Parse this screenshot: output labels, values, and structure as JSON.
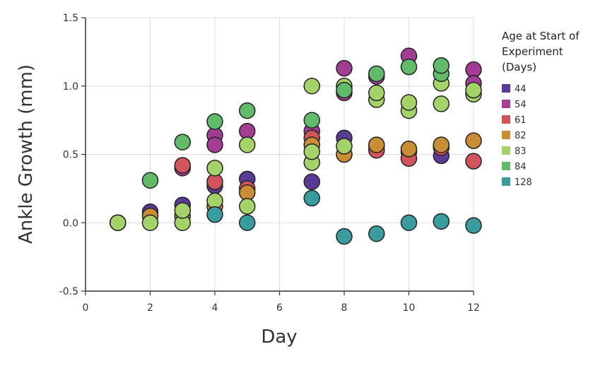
{
  "chart_data": {
    "type": "scatter",
    "title": "",
    "xlabel": "Day",
    "ylabel": "Ankle Growth (mm)",
    "xlim": [
      0,
      12
    ],
    "ylim": [
      -0.5,
      1.5
    ],
    "xticks": [
      "0",
      "2",
      "4",
      "6",
      "8",
      "10",
      "12"
    ],
    "yticks": [
      "-0.5",
      "0.0",
      "0.5",
      "1.0",
      "1.5"
    ],
    "grid": true,
    "legend_position": "right",
    "legend_title": [
      "Age at Start of",
      "Experiment",
      "(Days)"
    ],
    "series": [
      {
        "name": "44",
        "color": "#5b3a96",
        "points": [
          [
            1,
            0.0
          ],
          [
            2,
            0.08
          ],
          [
            3,
            0.13
          ],
          [
            4,
            0.27
          ],
          [
            5,
            0.32
          ],
          [
            7,
            0.3
          ],
          [
            8,
            0.62
          ],
          [
            9,
            0.56
          ],
          [
            10,
            0.52
          ],
          [
            11,
            0.49
          ]
        ]
      },
      {
        "name": "54",
        "color": "#a33d93",
        "points": [
          [
            3,
            0.4
          ],
          [
            4,
            0.64
          ],
          [
            4,
            0.57
          ],
          [
            5,
            0.67
          ],
          [
            7,
            0.67
          ],
          [
            8,
            0.95
          ],
          [
            8,
            1.13
          ],
          [
            9,
            1.07
          ],
          [
            10,
            1.22
          ],
          [
            11,
            0.56
          ],
          [
            12,
            1.12
          ],
          [
            12,
            1.02
          ]
        ]
      },
      {
        "name": "61",
        "color": "#d1555c",
        "points": [
          [
            1,
            0.0
          ],
          [
            3,
            0.42
          ],
          [
            4,
            0.3
          ],
          [
            5,
            0.25
          ],
          [
            7,
            0.62
          ],
          [
            8,
            0.5
          ],
          [
            9,
            0.53
          ],
          [
            10,
            0.47
          ],
          [
            11,
            0.55
          ],
          [
            12,
            0.45
          ]
        ]
      },
      {
        "name": "82",
        "color": "#c98d36",
        "points": [
          [
            1,
            0.0
          ],
          [
            2,
            0.05
          ],
          [
            3,
            0.05
          ],
          [
            4,
            0.12
          ],
          [
            5,
            0.22
          ],
          [
            7,
            0.57
          ],
          [
            8,
            0.5
          ],
          [
            9,
            0.57
          ],
          [
            10,
            0.54
          ],
          [
            11,
            0.57
          ],
          [
            12,
            0.6
          ]
        ]
      },
      {
        "name": "83",
        "color": "#a6d369",
        "points": [
          [
            1,
            0.0
          ],
          [
            2,
            0.0
          ],
          [
            3,
            0.0
          ],
          [
            3,
            0.09
          ],
          [
            4,
            0.4
          ],
          [
            4,
            0.16
          ],
          [
            5,
            0.12
          ],
          [
            5,
            0.57
          ],
          [
            7,
            0.44
          ],
          [
            7,
            0.52
          ],
          [
            7,
            1.0
          ],
          [
            8,
            1.0
          ],
          [
            8,
            0.56
          ],
          [
            9,
            0.9
          ],
          [
            9,
            0.95
          ],
          [
            10,
            0.82
          ],
          [
            10,
            0.88
          ],
          [
            11,
            0.87
          ],
          [
            11,
            1.02
          ],
          [
            12,
            0.94
          ],
          [
            12,
            0.97
          ]
        ]
      },
      {
        "name": "84",
        "color": "#61bb6b",
        "points": [
          [
            2,
            0.31
          ],
          [
            3,
            0.59
          ],
          [
            4,
            0.74
          ],
          [
            5,
            0.82
          ],
          [
            7,
            0.75
          ],
          [
            8,
            0.97
          ],
          [
            9,
            1.09
          ],
          [
            10,
            1.14
          ],
          [
            11,
            1.09
          ],
          [
            11,
            1.15
          ]
        ]
      },
      {
        "name": "128",
        "color": "#3a9c9e",
        "points": [
          [
            4,
            0.06
          ],
          [
            5,
            0.0
          ],
          [
            7,
            0.18
          ],
          [
            8,
            -0.1
          ],
          [
            9,
            -0.08
          ],
          [
            10,
            0.0
          ],
          [
            11,
            0.01
          ],
          [
            12,
            -0.02
          ]
        ]
      }
    ]
  }
}
